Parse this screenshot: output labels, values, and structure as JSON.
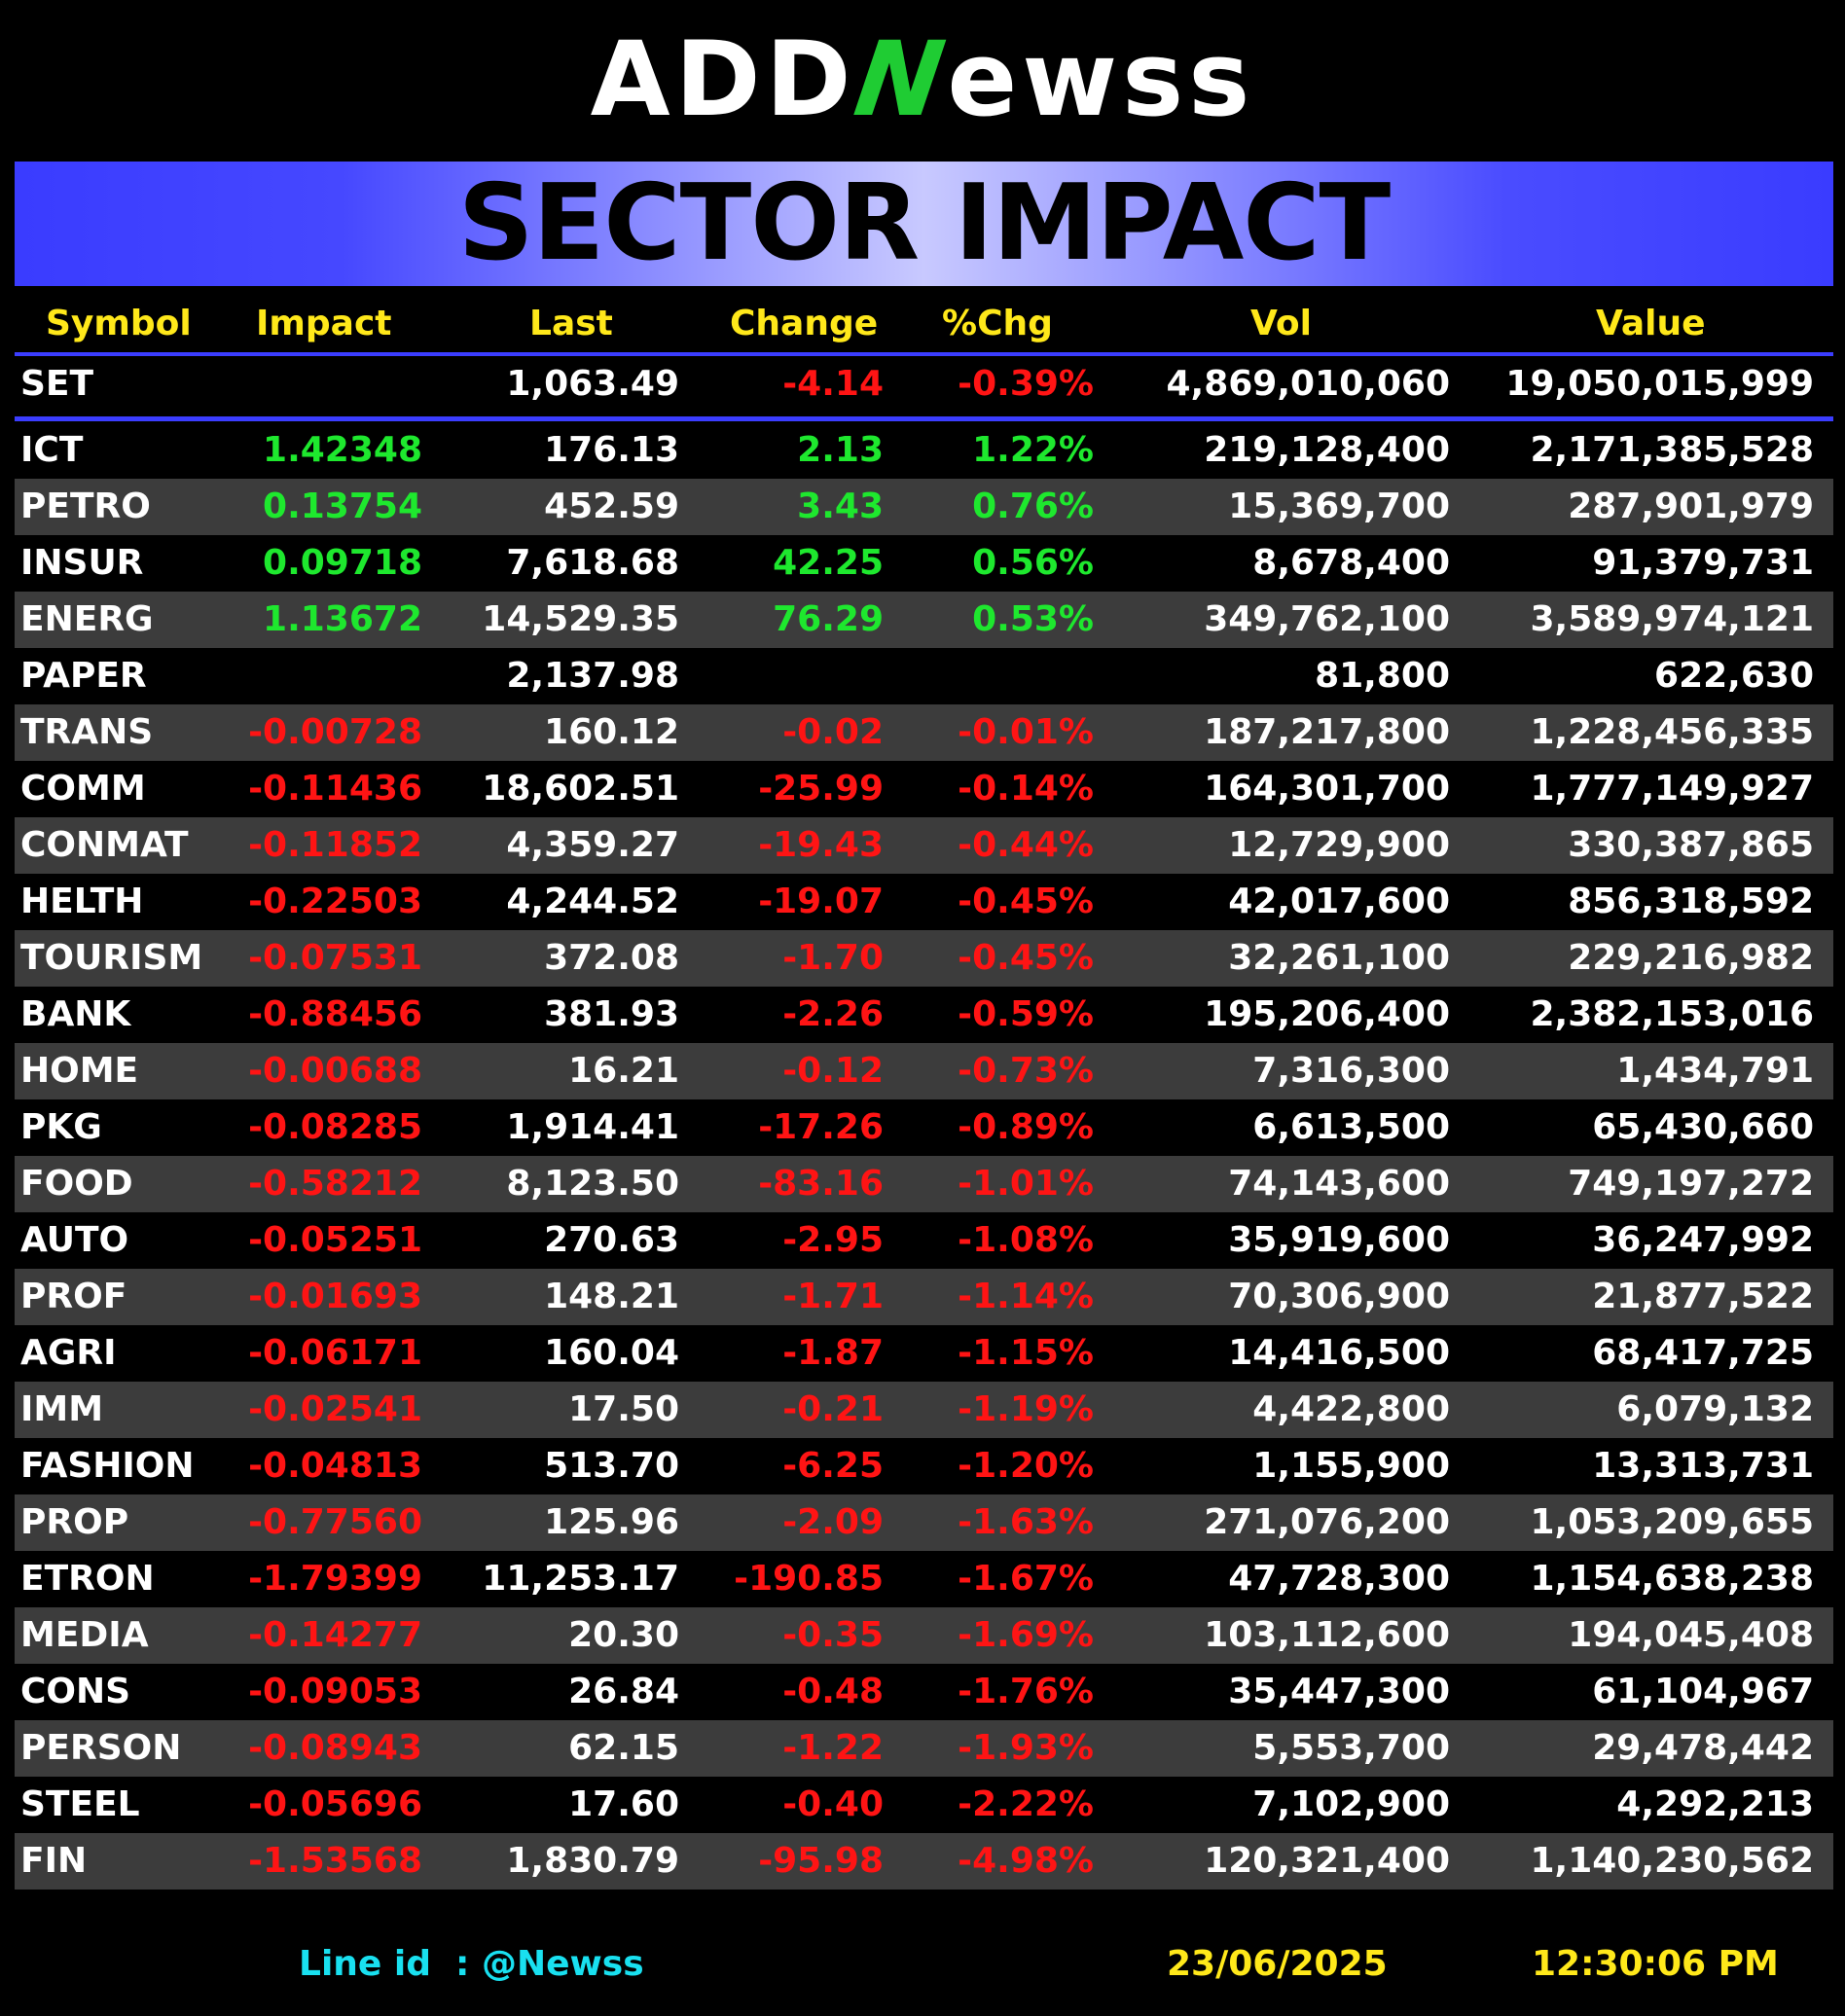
{
  "logo": {
    "part1": "ADD",
    "part2": "N",
    "part3": "ewss"
  },
  "banner": {
    "title": "SECTOR IMPACT"
  },
  "columns": [
    "Symbol",
    "Impact",
    "Last",
    "Change",
    "%Chg",
    "Vol",
    "Value"
  ],
  "index": {
    "symbol": "SET",
    "impact": "",
    "last": "1,063.49",
    "change": "-4.14",
    "pct": "-0.39%",
    "vol": "4,869,010,060",
    "value": "19,050,015,999"
  },
  "rows": [
    {
      "symbol": "ICT",
      "impact": "1.42348",
      "last": "176.13",
      "change": "2.13",
      "pct": "1.22%",
      "vol": "219,128,400",
      "value": "2,171,385,528"
    },
    {
      "symbol": "PETRO",
      "impact": "0.13754",
      "last": "452.59",
      "change": "3.43",
      "pct": "0.76%",
      "vol": "15,369,700",
      "value": "287,901,979"
    },
    {
      "symbol": "INSUR",
      "impact": "0.09718",
      "last": "7,618.68",
      "change": "42.25",
      "pct": "0.56%",
      "vol": "8,678,400",
      "value": "91,379,731"
    },
    {
      "symbol": "ENERG",
      "impact": "1.13672",
      "last": "14,529.35",
      "change": "76.29",
      "pct": "0.53%",
      "vol": "349,762,100",
      "value": "3,589,974,121"
    },
    {
      "symbol": "PAPER",
      "impact": "",
      "last": "2,137.98",
      "change": "",
      "pct": "",
      "vol": "81,800",
      "value": "622,630"
    },
    {
      "symbol": "TRANS",
      "impact": "-0.00728",
      "last": "160.12",
      "change": "-0.02",
      "pct": "-0.01%",
      "vol": "187,217,800",
      "value": "1,228,456,335"
    },
    {
      "symbol": "COMM",
      "impact": "-0.11436",
      "last": "18,602.51",
      "change": "-25.99",
      "pct": "-0.14%",
      "vol": "164,301,700",
      "value": "1,777,149,927"
    },
    {
      "symbol": "CONMAT",
      "impact": "-0.11852",
      "last": "4,359.27",
      "change": "-19.43",
      "pct": "-0.44%",
      "vol": "12,729,900",
      "value": "330,387,865"
    },
    {
      "symbol": "HELTH",
      "impact": "-0.22503",
      "last": "4,244.52",
      "change": "-19.07",
      "pct": "-0.45%",
      "vol": "42,017,600",
      "value": "856,318,592"
    },
    {
      "symbol": "TOURISM",
      "impact": "-0.07531",
      "last": "372.08",
      "change": "-1.70",
      "pct": "-0.45%",
      "vol": "32,261,100",
      "value": "229,216,982"
    },
    {
      "symbol": "BANK",
      "impact": "-0.88456",
      "last": "381.93",
      "change": "-2.26",
      "pct": "-0.59%",
      "vol": "195,206,400",
      "value": "2,382,153,016"
    },
    {
      "symbol": "HOME",
      "impact": "-0.00688",
      "last": "16.21",
      "change": "-0.12",
      "pct": "-0.73%",
      "vol": "7,316,300",
      "value": "1,434,791"
    },
    {
      "symbol": "PKG",
      "impact": "-0.08285",
      "last": "1,914.41",
      "change": "-17.26",
      "pct": "-0.89%",
      "vol": "6,613,500",
      "value": "65,430,660"
    },
    {
      "symbol": "FOOD",
      "impact": "-0.58212",
      "last": "8,123.50",
      "change": "-83.16",
      "pct": "-1.01%",
      "vol": "74,143,600",
      "value": "749,197,272"
    },
    {
      "symbol": "AUTO",
      "impact": "-0.05251",
      "last": "270.63",
      "change": "-2.95",
      "pct": "-1.08%",
      "vol": "35,919,600",
      "value": "36,247,992"
    },
    {
      "symbol": "PROF",
      "impact": "-0.01693",
      "last": "148.21",
      "change": "-1.71",
      "pct": "-1.14%",
      "vol": "70,306,900",
      "value": "21,877,522"
    },
    {
      "symbol": "AGRI",
      "impact": "-0.06171",
      "last": "160.04",
      "change": "-1.87",
      "pct": "-1.15%",
      "vol": "14,416,500",
      "value": "68,417,725"
    },
    {
      "symbol": "IMM",
      "impact": "-0.02541",
      "last": "17.50",
      "change": "-0.21",
      "pct": "-1.19%",
      "vol": "4,422,800",
      "value": "6,079,132"
    },
    {
      "symbol": "FASHION",
      "impact": "-0.04813",
      "last": "513.70",
      "change": "-6.25",
      "pct": "-1.20%",
      "vol": "1,155,900",
      "value": "13,313,731"
    },
    {
      "symbol": "PROP",
      "impact": "-0.77560",
      "last": "125.96",
      "change": "-2.09",
      "pct": "-1.63%",
      "vol": "271,076,200",
      "value": "1,053,209,655"
    },
    {
      "symbol": "ETRON",
      "impact": "-1.79399",
      "last": "11,253.17",
      "change": "-190.85",
      "pct": "-1.67%",
      "vol": "47,728,300",
      "value": "1,154,638,238"
    },
    {
      "symbol": "MEDIA",
      "impact": "-0.14277",
      "last": "20.30",
      "change": "-0.35",
      "pct": "-1.69%",
      "vol": "103,112,600",
      "value": "194,045,408"
    },
    {
      "symbol": "CONS",
      "impact": "-0.09053",
      "last": "26.84",
      "change": "-0.48",
      "pct": "-1.76%",
      "vol": "35,447,300",
      "value": "61,104,967"
    },
    {
      "symbol": "PERSON",
      "impact": "-0.08943",
      "last": "62.15",
      "change": "-1.22",
      "pct": "-1.93%",
      "vol": "5,553,700",
      "value": "29,478,442"
    },
    {
      "symbol": "STEEL",
      "impact": "-0.05696",
      "last": "17.60",
      "change": "-0.40",
      "pct": "-2.22%",
      "vol": "7,102,900",
      "value": "4,292,213"
    },
    {
      "symbol": "FIN",
      "impact": "-1.53568",
      "last": "1,830.79",
      "change": "-95.98",
      "pct": "-4.98%",
      "vol": "120,321,400",
      "value": "1,140,230,562"
    }
  ],
  "footer": {
    "line_label": "Line id",
    "line_sep": ":",
    "line_id": "@Newss",
    "date": "23/06/2025",
    "time": "12:30:06 PM"
  },
  "colors": {
    "positive": "#1ee82e",
    "negative": "#ff1414",
    "header": "#ffe81a",
    "accent": "#3b3dff"
  }
}
